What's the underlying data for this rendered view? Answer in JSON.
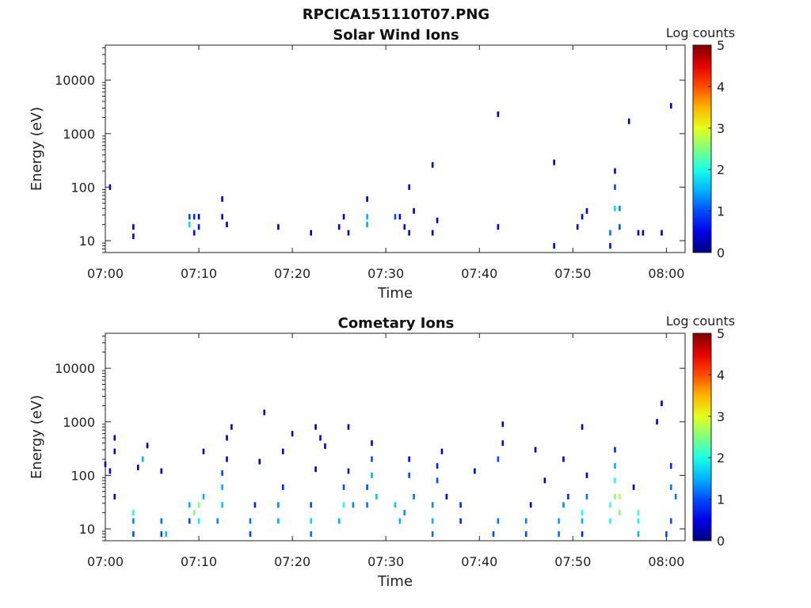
{
  "figure_title": "RPCICA151110T07.PNG",
  "chart_data": [
    {
      "type": "heatmap",
      "title": "Solar Wind Ions",
      "xlabel": "Time",
      "ylabel": "Energy (eV)",
      "yscale": "log",
      "ylim": [
        6,
        45000
      ],
      "xlim": [
        "07:00",
        "08:02"
      ],
      "x_ticks": [
        "07:00",
        "07:10",
        "07:20",
        "07:30",
        "07:40",
        "07:50",
        "08:00"
      ],
      "y_ticks": [
        "10",
        "100",
        "1000",
        "10000"
      ],
      "colorbar": {
        "label": "Log counts",
        "range": [
          0,
          5
        ],
        "ticks": [
          "0",
          "1",
          "2",
          "3",
          "4",
          "5"
        ],
        "colormap": "jet"
      },
      "grid": false,
      "cells": [
        [
          "07:00:30",
          100,
          0.3
        ],
        [
          "07:03:00",
          12,
          0.5
        ],
        [
          "07:03:00",
          18,
          0.3
        ],
        [
          "07:09:00",
          28,
          1.0
        ],
        [
          "07:09:00",
          20,
          1.7
        ],
        [
          "07:09:30",
          14,
          0.6
        ],
        [
          "07:09:30",
          28,
          0.8
        ],
        [
          "07:10:00",
          18,
          0.7
        ],
        [
          "07:10:00",
          28,
          0.4
        ],
        [
          "07:12:30",
          60,
          0.3
        ],
        [
          "07:12:30",
          28,
          0.5
        ],
        [
          "07:13:00",
          20,
          0.4
        ],
        [
          "07:18:30",
          18,
          0.3
        ],
        [
          "07:22:00",
          14,
          0.3
        ],
        [
          "07:25:00",
          18,
          0.4
        ],
        [
          "07:25:30",
          28,
          0.4
        ],
        [
          "07:26:00",
          14,
          0.4
        ],
        [
          "07:28:00",
          28,
          1.5
        ],
        [
          "07:28:00",
          20,
          1.5
        ],
        [
          "07:28:00",
          60,
          0.3
        ],
        [
          "07:31:00",
          28,
          1.0
        ],
        [
          "07:31:30",
          28,
          0.6
        ],
        [
          "07:32:00",
          18,
          0.4
        ],
        [
          "07:32:30",
          14,
          0.3
        ],
        [
          "07:33:00",
          36,
          0.3
        ],
        [
          "07:32:30",
          100,
          0.3
        ],
        [
          "07:35:00",
          14,
          0.3
        ],
        [
          "07:35:00",
          260,
          0.3
        ],
        [
          "07:35:30",
          24,
          0.3
        ],
        [
          "07:42:00",
          2300,
          0.3
        ],
        [
          "07:42:00",
          18,
          0.3
        ],
        [
          "07:48:00",
          8,
          0.4
        ],
        [
          "07:48:00",
          290,
          0.2
        ],
        [
          "07:50:30",
          18,
          0.3
        ],
        [
          "07:51:00",
          28,
          0.4
        ],
        [
          "07:51:30",
          36,
          0.3
        ],
        [
          "07:54:00",
          8,
          0.7
        ],
        [
          "07:54:00",
          14,
          1.2
        ],
        [
          "07:54:30",
          40,
          1.7
        ],
        [
          "07:54:30",
          100,
          1.0
        ],
        [
          "07:54:30",
          200,
          0.5
        ],
        [
          "07:55:00",
          40,
          1.3
        ],
        [
          "07:55:00",
          18,
          1.0
        ],
        [
          "07:56:00",
          1700,
          0.3
        ],
        [
          "07:57:00",
          14,
          0.5
        ],
        [
          "07:57:30",
          14,
          0.4
        ],
        [
          "07:59:30",
          14,
          0.3
        ],
        [
          "08:00:30",
          3300,
          0.3
        ]
      ]
    },
    {
      "type": "heatmap",
      "title": "Cometary Ions",
      "xlabel": "Time",
      "ylabel": "Energy (eV)",
      "yscale": "log",
      "ylim": [
        6,
        45000
      ],
      "xlim": [
        "07:00",
        "08:02"
      ],
      "x_ticks": [
        "07:00",
        "07:10",
        "07:20",
        "07:30",
        "07:40",
        "07:50",
        "08:00"
      ],
      "y_ticks": [
        "10",
        "100",
        "1000",
        "10000"
      ],
      "colorbar": {
        "label": "Log counts",
        "range": [
          0,
          5
        ],
        "ticks": [
          "0",
          "1",
          "2",
          "3",
          "4",
          "5"
        ],
        "colormap": "jet"
      },
      "grid": false,
      "cells": [
        [
          "07:00:00",
          160,
          0.3
        ],
        [
          "07:00:30",
          120,
          0.3
        ],
        [
          "07:01:00",
          500,
          0.3
        ],
        [
          "07:01:00",
          280,
          0.3
        ],
        [
          "07:01:00",
          40,
          0.3
        ],
        [
          "07:03:00",
          8,
          1.0
        ],
        [
          "07:03:00",
          14,
          1.3
        ],
        [
          "07:03:00",
          20,
          2.0
        ],
        [
          "07:03:30",
          140,
          0.3
        ],
        [
          "07:04:00",
          200,
          1.5
        ],
        [
          "07:04:30",
          360,
          0.3
        ],
        [
          "07:06:00",
          8,
          1.0
        ],
        [
          "07:06:00",
          14,
          1.2
        ],
        [
          "07:06:30",
          8,
          1.6
        ],
        [
          "07:06:00",
          120,
          0.3
        ],
        [
          "07:09:00",
          14,
          1.0
        ],
        [
          "07:09:00",
          28,
          1.5
        ],
        [
          "07:09:30",
          20,
          2.5
        ],
        [
          "07:10:00",
          28,
          2.5
        ],
        [
          "07:10:00",
          14,
          1.8
        ],
        [
          "07:10:30",
          40,
          1.5
        ],
        [
          "07:10:30",
          280,
          0.3
        ],
        [
          "07:12:00",
          14,
          1.3
        ],
        [
          "07:12:30",
          28,
          1.6
        ],
        [
          "07:12:30",
          60,
          1.5
        ],
        [
          "07:12:30",
          110,
          1.0
        ],
        [
          "07:13:00",
          200,
          0.5
        ],
        [
          "07:13:00",
          500,
          0.3
        ],
        [
          "07:13:30",
          800,
          0.3
        ],
        [
          "07:15:30",
          8,
          1.0
        ],
        [
          "07:15:30",
          14,
          1.2
        ],
        [
          "07:16:00",
          28,
          0.8
        ],
        [
          "07:16:30",
          180,
          0.3
        ],
        [
          "07:17:00",
          1500,
          0.3
        ],
        [
          "07:18:30",
          14,
          1.5
        ],
        [
          "07:18:30",
          28,
          1.3
        ],
        [
          "07:19:00",
          60,
          0.8
        ],
        [
          "07:19:00",
          280,
          0.3
        ],
        [
          "07:20:00",
          600,
          0.3
        ],
        [
          "07:22:00",
          8,
          1.2
        ],
        [
          "07:22:00",
          14,
          1.7
        ],
        [
          "07:22:00",
          28,
          1.0
        ],
        [
          "07:22:30",
          130,
          0.3
        ],
        [
          "07:22:30",
          800,
          0.3
        ],
        [
          "07:23:00",
          500,
          0.5
        ],
        [
          "07:23:30",
          350,
          0.3
        ],
        [
          "07:25:00",
          14,
          1.5
        ],
        [
          "07:25:30",
          28,
          2.0
        ],
        [
          "07:25:30",
          60,
          1.0
        ],
        [
          "07:26:00",
          120,
          0.7
        ],
        [
          "07:26:00",
          800,
          0.3
        ],
        [
          "07:26:30",
          28,
          1.3
        ],
        [
          "07:28:00",
          28,
          1.2
        ],
        [
          "07:28:00",
          60,
          1.0
        ],
        [
          "07:28:30",
          100,
          1.5
        ],
        [
          "07:28:30",
          200,
          1.0
        ],
        [
          "07:28:30",
          400,
          0.5
        ],
        [
          "07:29:00",
          40,
          1.6
        ],
        [
          "07:31:00",
          28,
          1.6
        ],
        [
          "07:31:30",
          14,
          1.5
        ],
        [
          "07:32:00",
          20,
          1.3
        ],
        [
          "07:32:30",
          100,
          1.0
        ],
        [
          "07:32:30",
          200,
          0.6
        ],
        [
          "07:33:00",
          40,
          1.2
        ],
        [
          "07:35:00",
          8,
          1.2
        ],
        [
          "07:35:00",
          14,
          1.5
        ],
        [
          "07:35:00",
          28,
          1.3
        ],
        [
          "07:35:30",
          80,
          1.0
        ],
        [
          "07:35:30",
          150,
          0.8
        ],
        [
          "07:36:00",
          280,
          0.6
        ],
        [
          "07:36:30",
          40,
          0.5
        ],
        [
          "07:38:00",
          14,
          0.8
        ],
        [
          "07:38:00",
          28,
          0.8
        ],
        [
          "07:39:30",
          120,
          0.3
        ],
        [
          "07:41:30",
          8,
          1.0
        ],
        [
          "07:42:00",
          14,
          1.2
        ],
        [
          "07:42:00",
          200,
          1.0
        ],
        [
          "07:42:30",
          400,
          0.6
        ],
        [
          "07:42:30",
          900,
          0.3
        ],
        [
          "07:45:00",
          8,
          1.0
        ],
        [
          "07:45:00",
          14,
          1.3
        ],
        [
          "07:45:30",
          28,
          0.6
        ],
        [
          "07:46:00",
          300,
          0.3
        ],
        [
          "07:47:00",
          80,
          0.3
        ],
        [
          "07:48:30",
          8,
          1.2
        ],
        [
          "07:48:30",
          14,
          1.4
        ],
        [
          "07:49:00",
          28,
          1.3
        ],
        [
          "07:49:00",
          200,
          0.5
        ],
        [
          "07:49:30",
          40,
          0.8
        ],
        [
          "07:51:00",
          8,
          0.8
        ],
        [
          "07:51:00",
          14,
          1.5
        ],
        [
          "07:51:00",
          20,
          2.0
        ],
        [
          "07:51:30",
          40,
          1.2
        ],
        [
          "07:51:30",
          100,
          0.5
        ],
        [
          "07:51:00",
          800,
          0.3
        ],
        [
          "07:54:00",
          14,
          2.0
        ],
        [
          "07:54:00",
          28,
          2.2
        ],
        [
          "07:54:30",
          40,
          2.5
        ],
        [
          "07:54:30",
          80,
          2.0
        ],
        [
          "07:54:30",
          150,
          1.5
        ],
        [
          "07:55:00",
          40,
          2.8
        ],
        [
          "07:55:00",
          20,
          2.5
        ],
        [
          "07:54:30",
          300,
          0.8
        ],
        [
          "07:57:00",
          8,
          1.5
        ],
        [
          "07:57:00",
          14,
          2.0
        ],
        [
          "07:57:00",
          20,
          2.2
        ],
        [
          "07:56:30",
          60,
          0.3
        ],
        [
          "07:59:00",
          1000,
          0.3
        ],
        [
          "07:59:30",
          2200,
          0.3
        ],
        [
          "08:00:00",
          8,
          1.0
        ],
        [
          "08:00:30",
          14,
          1.0
        ],
        [
          "08:00:30",
          60,
          1.2
        ],
        [
          "08:00:30",
          150,
          0.8
        ],
        [
          "08:01:00",
          40,
          1.2
        ]
      ]
    }
  ]
}
